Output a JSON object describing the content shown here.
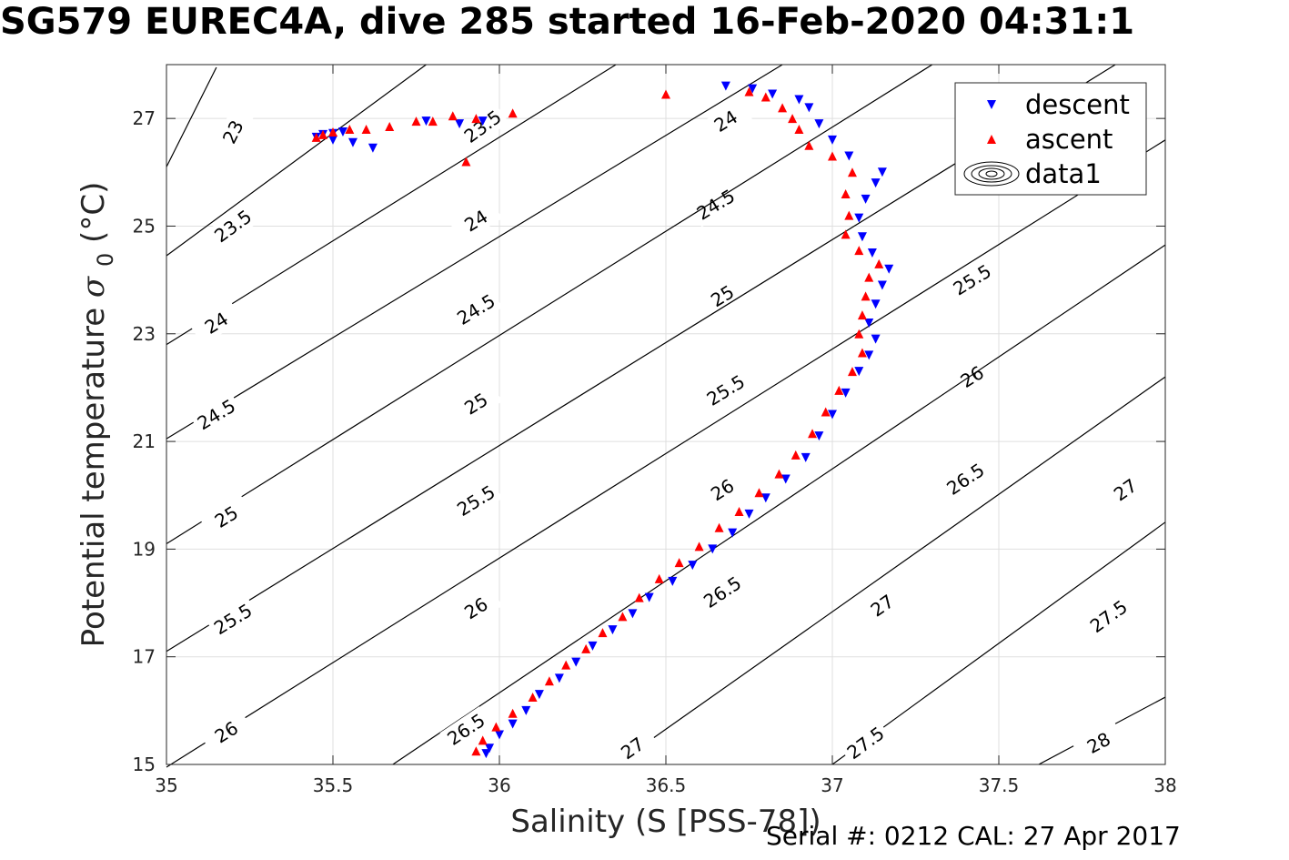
{
  "chart_data": {
    "type": "scatter",
    "title": "SG579 EUREC4A, dive 285 started 16-Feb-2020 04:31:1",
    "xlabel": "Salinity (S [PSS-78])",
    "ylabel": "Potential temperature σ₀ (°C)",
    "ylabel_main": "Potential temperature",
    "ylabel_sym": "σ",
    "ylabel_sub": "0",
    "ylabel_unit": "(°C)",
    "footer": "Serial #: 0212  CAL: 27 Apr 2017",
    "xlim": [
      35,
      38
    ],
    "ylim": [
      15,
      28
    ],
    "xticks": [
      "35",
      "35.5",
      "36",
      "36.5",
      "37",
      "37.5",
      "38"
    ],
    "yticks": [
      "15",
      "17",
      "19",
      "21",
      "23",
      "25",
      "27"
    ],
    "grid": true,
    "legend_position": "top-right",
    "legend": [
      {
        "label": "descent",
        "marker": "triangle-down",
        "color": "#0000ff"
      },
      {
        "label": "ascent",
        "marker": "triangle-up",
        "color": "#ff0000"
      },
      {
        "label": "data1",
        "marker": "contour-icon",
        "color": "#000000"
      }
    ],
    "series": [
      {
        "name": "descent",
        "color": "#0000ff",
        "marker": "triangle-down",
        "points": [
          [
            35.96,
            15.2
          ],
          [
            35.97,
            15.3
          ],
          [
            36.0,
            15.55
          ],
          [
            36.04,
            15.75
          ],
          [
            36.08,
            16.0
          ],
          [
            36.12,
            16.3
          ],
          [
            36.18,
            16.6
          ],
          [
            36.23,
            16.9
          ],
          [
            36.28,
            17.2
          ],
          [
            36.34,
            17.5
          ],
          [
            36.4,
            17.8
          ],
          [
            36.45,
            18.1
          ],
          [
            36.52,
            18.4
          ],
          [
            36.58,
            18.7
          ],
          [
            36.64,
            19.0
          ],
          [
            36.7,
            19.3
          ],
          [
            36.75,
            19.65
          ],
          [
            36.8,
            19.95
          ],
          [
            36.86,
            20.3
          ],
          [
            36.92,
            20.7
          ],
          [
            36.96,
            21.1
          ],
          [
            37.0,
            21.5
          ],
          [
            37.04,
            21.9
          ],
          [
            37.08,
            22.3
          ],
          [
            37.11,
            22.6
          ],
          [
            37.13,
            22.9
          ],
          [
            37.11,
            23.2
          ],
          [
            37.13,
            23.55
          ],
          [
            37.15,
            23.9
          ],
          [
            37.17,
            24.2
          ],
          [
            37.12,
            24.5
          ],
          [
            37.09,
            24.8
          ],
          [
            37.08,
            25.15
          ],
          [
            37.1,
            25.5
          ],
          [
            37.13,
            25.8
          ],
          [
            37.15,
            26.0
          ],
          [
            37.05,
            26.3
          ],
          [
            37.0,
            26.6
          ],
          [
            36.96,
            26.9
          ],
          [
            36.93,
            27.2
          ],
          [
            36.9,
            27.35
          ],
          [
            36.82,
            27.45
          ],
          [
            36.76,
            27.55
          ],
          [
            36.68,
            27.6
          ],
          [
            35.45,
            26.65
          ],
          [
            35.47,
            26.7
          ],
          [
            35.5,
            26.72
          ],
          [
            35.53,
            26.75
          ],
          [
            35.56,
            26.55
          ],
          [
            35.62,
            26.45
          ],
          [
            35.5,
            26.6
          ],
          [
            35.78,
            26.95
          ],
          [
            35.88,
            26.9
          ],
          [
            35.95,
            26.95
          ]
        ]
      },
      {
        "name": "ascent",
        "color": "#ff0000",
        "marker": "triangle-up",
        "points": [
          [
            35.93,
            15.25
          ],
          [
            35.95,
            15.45
          ],
          [
            35.99,
            15.7
          ],
          [
            36.04,
            15.95
          ],
          [
            36.1,
            16.25
          ],
          [
            36.15,
            16.55
          ],
          [
            36.2,
            16.85
          ],
          [
            36.26,
            17.15
          ],
          [
            36.31,
            17.45
          ],
          [
            36.37,
            17.75
          ],
          [
            36.42,
            18.1
          ],
          [
            36.48,
            18.45
          ],
          [
            36.54,
            18.75
          ],
          [
            36.6,
            19.05
          ],
          [
            36.66,
            19.4
          ],
          [
            36.72,
            19.7
          ],
          [
            36.78,
            20.05
          ],
          [
            36.84,
            20.4
          ],
          [
            36.89,
            20.75
          ],
          [
            36.94,
            21.15
          ],
          [
            36.98,
            21.55
          ],
          [
            37.02,
            21.95
          ],
          [
            37.06,
            22.3
          ],
          [
            37.09,
            22.65
          ],
          [
            37.08,
            23.0
          ],
          [
            37.09,
            23.35
          ],
          [
            37.1,
            23.7
          ],
          [
            37.11,
            24.05
          ],
          [
            37.14,
            24.3
          ],
          [
            37.08,
            24.55
          ],
          [
            37.04,
            24.85
          ],
          [
            37.05,
            25.2
          ],
          [
            37.04,
            25.6
          ],
          [
            37.06,
            26.0
          ],
          [
            37.0,
            26.3
          ],
          [
            36.93,
            26.5
          ],
          [
            36.9,
            26.8
          ],
          [
            36.88,
            27.0
          ],
          [
            36.85,
            27.2
          ],
          [
            36.8,
            27.4
          ],
          [
            36.75,
            27.5
          ],
          [
            36.5,
            27.45
          ],
          [
            36.04,
            27.1
          ],
          [
            35.93,
            27.0
          ],
          [
            35.86,
            27.05
          ],
          [
            35.8,
            26.95
          ],
          [
            35.75,
            26.95
          ],
          [
            35.67,
            26.85
          ],
          [
            35.6,
            26.8
          ],
          [
            35.55,
            26.8
          ],
          [
            35.5,
            26.75
          ],
          [
            35.47,
            26.7
          ],
          [
            35.45,
            26.65
          ],
          [
            35.9,
            26.2
          ]
        ]
      }
    ],
    "contours": [
      {
        "level": "23",
        "x1": 35.0,
        "y1": 26.1,
        "x2": 35.15,
        "y2": 27.95,
        "labels": [
          [
            35.2,
            26.75
          ]
        ]
      },
      {
        "level": "23.5",
        "x1": 35.0,
        "y1": 24.45,
        "x2": 35.78,
        "y2": 28.0,
        "labels": [
          [
            35.2,
            25.0
          ],
          [
            35.95,
            26.85
          ]
        ]
      },
      {
        "level": "24",
        "x1": 35.0,
        "y1": 22.8,
        "x2": 36.35,
        "y2": 28.0,
        "labels": [
          [
            35.15,
            23.2
          ],
          [
            35.93,
            25.1
          ],
          [
            36.68,
            26.95
          ]
        ]
      },
      {
        "level": "24.5",
        "x1": 35.0,
        "y1": 21.05,
        "x2": 36.85,
        "y2": 28.0,
        "labels": [
          [
            35.15,
            21.5
          ],
          [
            35.93,
            23.45
          ],
          [
            36.65,
            25.4
          ]
        ]
      },
      {
        "level": "25",
        "x1": 35.0,
        "y1": 19.1,
        "x2": 37.3,
        "y2": 28.0,
        "labels": [
          [
            35.18,
            19.6
          ],
          [
            35.93,
            21.7
          ],
          [
            36.67,
            23.7
          ]
        ]
      },
      {
        "level": "25.5",
        "x1": 35.0,
        "y1": 17.1,
        "x2": 37.85,
        "y2": 28.0,
        "labels": [
          [
            35.2,
            17.7
          ],
          [
            35.93,
            19.9
          ],
          [
            36.68,
            21.95
          ],
          [
            37.42,
            24.0
          ]
        ]
      },
      {
        "level": "26",
        "x1": 35.0,
        "y1": 14.95,
        "x2": 38.0,
        "y2": 26.6,
        "labels": [
          [
            35.18,
            15.6
          ],
          [
            35.93,
            17.9
          ],
          [
            36.67,
            20.1
          ],
          [
            37.42,
            22.2
          ]
        ]
      },
      {
        "level": "26.5",
        "x1": 35.68,
        "y1": 15.0,
        "x2": 38.0,
        "y2": 24.65,
        "labels": [
          [
            35.9,
            15.65
          ],
          [
            36.67,
            18.2
          ],
          [
            37.4,
            20.3
          ]
        ]
      },
      {
        "level": "27",
        "x1": 36.35,
        "y1": 15.0,
        "x2": 38.0,
        "y2": 22.2,
        "labels": [
          [
            36.4,
            15.3
          ],
          [
            37.15,
            17.95
          ],
          [
            37.88,
            20.1
          ]
        ]
      },
      {
        "level": "27.5",
        "x1": 37.0,
        "y1": 15.0,
        "x2": 38.0,
        "y2": 19.5,
        "labels": [
          [
            37.1,
            15.4
          ],
          [
            37.83,
            17.75
          ]
        ]
      },
      {
        "level": "28",
        "x1": 37.62,
        "y1": 15.0,
        "x2": 38.0,
        "y2": 16.25,
        "labels": [
          [
            37.8,
            15.4
          ]
        ]
      }
    ]
  }
}
